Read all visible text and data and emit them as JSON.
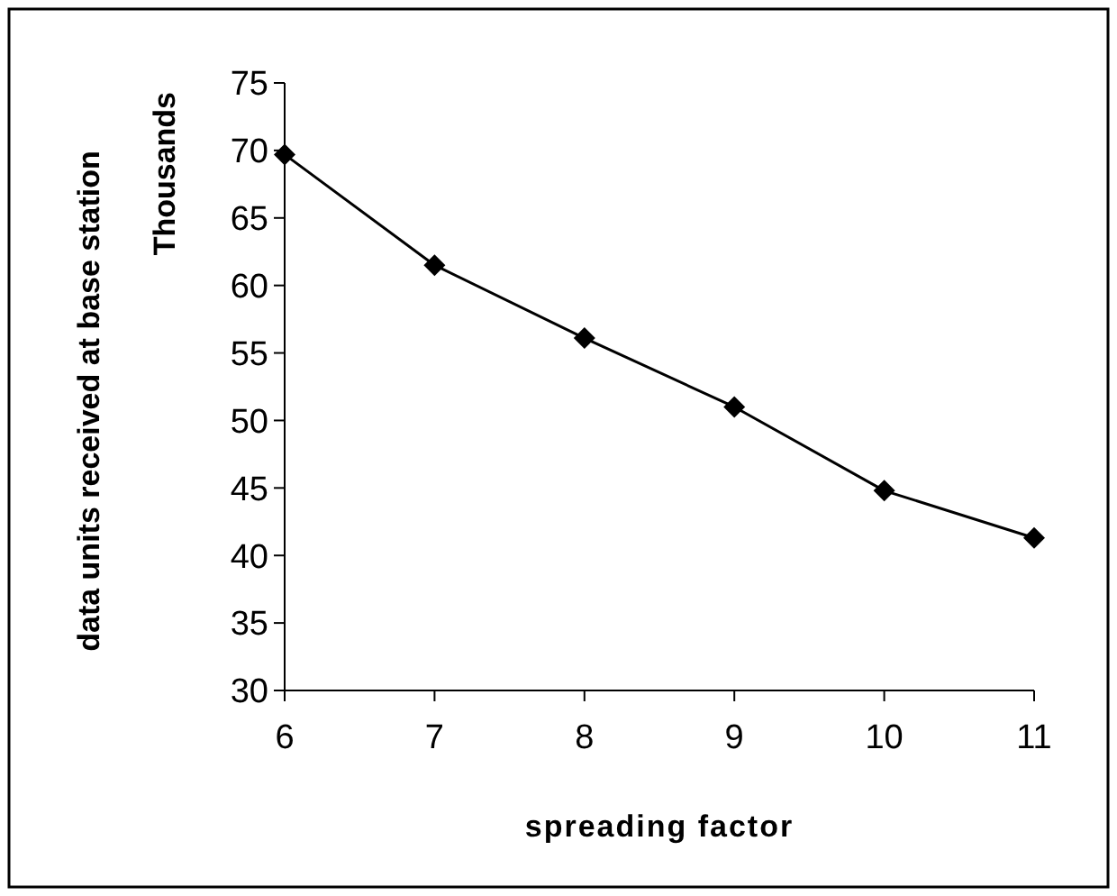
{
  "chart_data": {
    "type": "line",
    "xlabel": "spreading factor",
    "ylabel": "data units received at base station",
    "annotations": [
      "Thousands"
    ],
    "x": [
      6,
      7,
      8,
      9,
      10,
      11
    ],
    "series": [
      {
        "color": "#000000",
        "values": [
          69.7,
          61.5,
          56.1,
          51.0,
          44.8,
          41.3
        ]
      }
    ],
    "xlim": [
      6,
      11
    ],
    "xticks": [
      6,
      7,
      8,
      9,
      10,
      11
    ],
    "ylim": [
      30,
      75
    ],
    "yticks": [
      30,
      35,
      40,
      45,
      50,
      55,
      60,
      65,
      70,
      75
    ],
    "grid": false,
    "marker": "diamond",
    "line_style": "solid"
  }
}
